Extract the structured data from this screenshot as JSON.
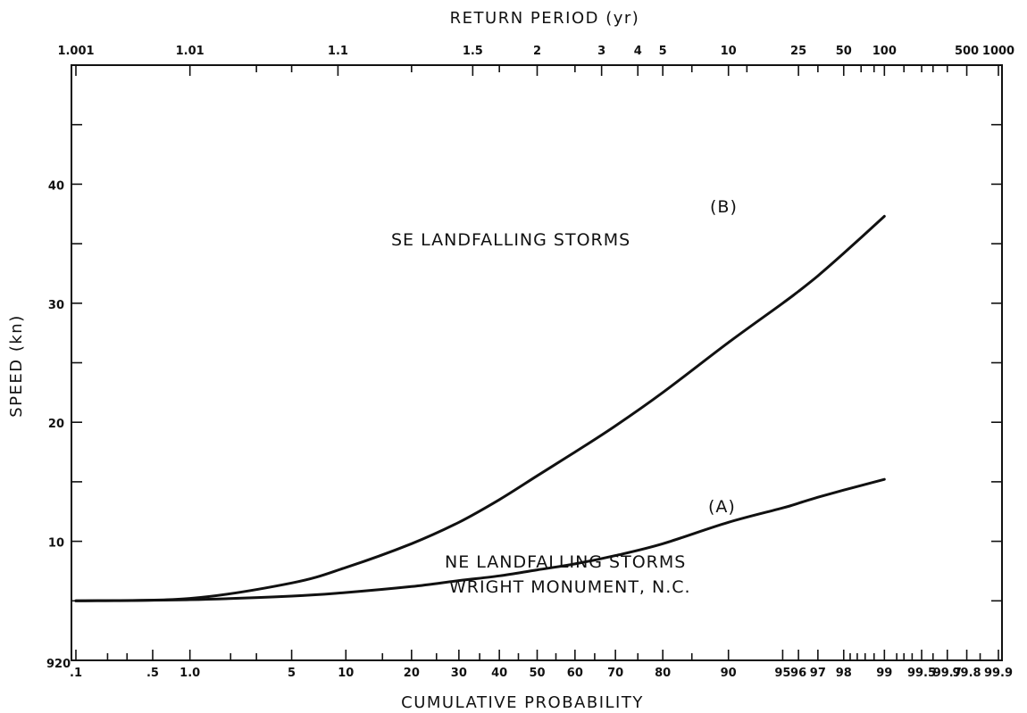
{
  "chart_data": {
    "type": "line",
    "title": "",
    "top_axis_label": "RETURN PERIOD (yr)",
    "top_axis_ticks": [
      {
        "label": "1.001",
        "p": 0.1
      },
      {
        "label": "1.01",
        "p": 1.0
      },
      {
        "label": "1.1",
        "p": 9.1
      },
      {
        "label": "1.5",
        "p": 33.3
      },
      {
        "label": "2",
        "p": 50
      },
      {
        "label": "3",
        "p": 66.7
      },
      {
        "label": "4",
        "p": 75
      },
      {
        "label": "5",
        "p": 80
      },
      {
        "label": "10",
        "p": 90
      },
      {
        "label": "25",
        "p": 96
      },
      {
        "label": "50",
        "p": 98
      },
      {
        "label": "100",
        "p": 99
      },
      {
        "label": "500",
        "p": 99.8
      },
      {
        "label": "1000",
        "p": 99.9
      }
    ],
    "xlabel": "CUMULATIVE PROBABILITY",
    "x_ticks": [
      {
        "label": ".1",
        "p": 0.1
      },
      {
        "label": ".5",
        "p": 0.5
      },
      {
        "label": "1.0",
        "p": 1.0
      },
      {
        "label": "5",
        "p": 5
      },
      {
        "label": "10",
        "p": 10
      },
      {
        "label": "20",
        "p": 20
      },
      {
        "label": "30",
        "p": 30
      },
      {
        "label": "40",
        "p": 40
      },
      {
        "label": "50",
        "p": 50
      },
      {
        "label": "60",
        "p": 60
      },
      {
        "label": "70",
        "p": 70
      },
      {
        "label": "80",
        "p": 80
      },
      {
        "label": "90",
        "p": 90
      },
      {
        "label": "95",
        "p": 95
      },
      {
        "label": "96",
        "p": 96
      },
      {
        "label": "97",
        "p": 97
      },
      {
        "label": "98",
        "p": 98
      },
      {
        "label": "99",
        "p": 99
      },
      {
        "label": "99.5",
        "p": 99.5
      },
      {
        "label": "99.7",
        "p": 99.7
      },
      {
        "label": "99.8",
        "p": 99.8
      },
      {
        "label": "99.9",
        "p": 99.9
      }
    ],
    "ylabel": "SPEED (kn)",
    "y_ticks": [
      {
        "label": "10",
        "value": 10
      },
      {
        "label": "20",
        "value": 20
      },
      {
        "label": "30",
        "value": 30
      },
      {
        "label": "40",
        "value": 40
      }
    ],
    "corner_label": "920",
    "ylim": [
      0,
      50
    ],
    "grid": false,
    "series": [
      {
        "name": "SE LANDFALLING STORMS",
        "marker": "(B)",
        "points": [
          [
            0.1,
            5
          ],
          [
            1,
            5.2
          ],
          [
            5,
            6.5
          ],
          [
            10,
            7.8
          ],
          [
            20,
            9.8
          ],
          [
            30,
            11.6
          ],
          [
            40,
            13.5
          ],
          [
            50,
            15.5
          ],
          [
            60,
            17.5
          ],
          [
            70,
            19.7
          ],
          [
            80,
            22.5
          ],
          [
            90,
            26.7
          ],
          [
            95,
            30
          ],
          [
            96,
            31
          ],
          [
            97,
            32.3
          ],
          [
            98,
            34.2
          ],
          [
            99,
            37.3
          ]
        ]
      },
      {
        "name": "NE LANDFALLING STORMS WRIGHT MONUMENT, N.C.",
        "marker": "(A)",
        "points": [
          [
            0.1,
            5
          ],
          [
            1,
            5.1
          ],
          [
            5,
            5.4
          ],
          [
            10,
            5.7
          ],
          [
            20,
            6.2
          ],
          [
            30,
            6.7
          ],
          [
            40,
            7.1
          ],
          [
            50,
            7.6
          ],
          [
            60,
            8.1
          ],
          [
            70,
            8.8
          ],
          [
            80,
            9.8
          ],
          [
            90,
            11.6
          ],
          [
            95,
            12.8
          ],
          [
            96,
            13.2
          ],
          [
            97,
            13.7
          ],
          [
            98,
            14.3
          ],
          [
            99,
            15.2
          ]
        ]
      }
    ],
    "annotations": {
      "B": "(B)",
      "A": "(A)",
      "se_label": "SE LANDFALLING STORMS",
      "ne_label_1": "NE LANDFALLING STORMS",
      "ne_label_2": "WRIGHT MONUMENT, N.C."
    }
  }
}
